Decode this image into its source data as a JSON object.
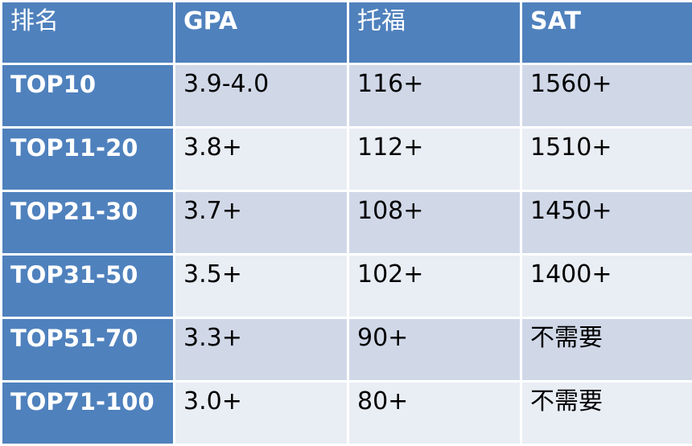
{
  "chart_data": {
    "type": "table",
    "columns": [
      "排名",
      "GPA",
      "托福",
      "SAT"
    ],
    "rows": [
      [
        "TOP10",
        "3.9-4.0",
        "116+",
        "1560+"
      ],
      [
        "TOP11-20",
        "3.8+",
        "112+",
        "1510+"
      ],
      [
        "TOP21-30",
        "3.7+",
        "108+",
        "1450+"
      ],
      [
        "TOP31-50",
        "3.5+",
        "102+",
        "1400+"
      ],
      [
        "TOP51-70",
        "3.3+",
        "90+",
        "不需要"
      ],
      [
        "TOP71-100",
        "3.0+",
        "80+",
        "不需要"
      ]
    ]
  },
  "colors": {
    "header_bg": "#4f81bd",
    "row_odd_bg": "#d0d8e8",
    "row_even_bg": "#e9edf4",
    "border": "#ffffff"
  }
}
